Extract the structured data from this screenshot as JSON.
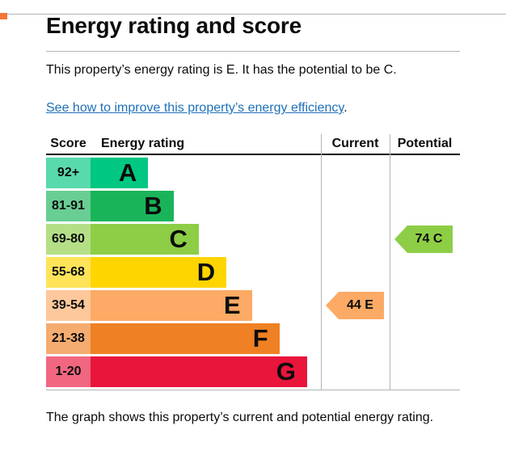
{
  "page": {
    "title": "Energy rating and score",
    "summary": "This property’s energy rating is E. It has the potential to be C.",
    "link_text": "See how to improve this property’s energy efficiency",
    "link_suffix": ".",
    "caption": "The graph shows this property’s current and potential energy rating."
  },
  "colors": {
    "text": "#0b0c0c",
    "link": "#1d70b8",
    "divider": "#b1b4b6",
    "top_square": "#f47738"
  },
  "chart_data": {
    "type": "bar",
    "title": "Energy rating and score",
    "headers": {
      "score": "Score",
      "rating": "Energy rating",
      "current": "Current",
      "potential": "Potential"
    },
    "bands": [
      {
        "score_range": "92+",
        "letter": "A",
        "color": "#00c781",
        "tint": "#59daad",
        "bar_pct": 25
      },
      {
        "score_range": "81-91",
        "letter": "B",
        "color": "#19b459",
        "tint": "#69ce93",
        "bar_pct": 36
      },
      {
        "score_range": "69-80",
        "letter": "C",
        "color": "#8dce46",
        "tint": "#b5df87",
        "bar_pct": 47
      },
      {
        "score_range": "55-68",
        "letter": "D",
        "color": "#ffd500",
        "tint": "#ffe459",
        "bar_pct": 59
      },
      {
        "score_range": "39-54",
        "letter": "E",
        "color": "#fcaa65",
        "tint": "#fdc89b",
        "bar_pct": 70
      },
      {
        "score_range": "21-38",
        "letter": "F",
        "color": "#ef8023",
        "tint": "#f5ac70",
        "bar_pct": 82
      },
      {
        "score_range": "1-20",
        "letter": "G",
        "color": "#e9153b",
        "tint": "#f16780",
        "bar_pct": 94
      }
    ],
    "current": {
      "label": "44 E",
      "value": 44,
      "band": "E",
      "band_index": 4,
      "color": "#fcaa65"
    },
    "potential": {
      "label": "74 C",
      "value": 74,
      "band": "C",
      "band_index": 2,
      "color": "#8dce46"
    }
  }
}
